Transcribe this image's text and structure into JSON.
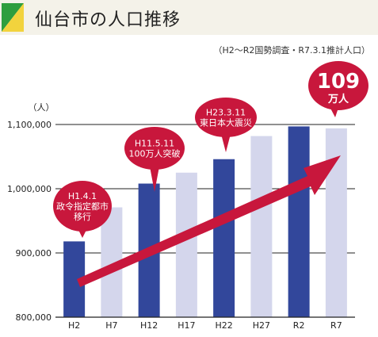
{
  "header": {
    "title": "仙台市の人口推移"
  },
  "subtitle": "（H2〜R2国勢調査・R7.3.1推計人口）",
  "colors": {
    "accent_green": "#2e9e3e",
    "accent_yellow": "#f2d33d",
    "bar_dark": "#32479b",
    "bar_light": "#d4d6ec",
    "callout": "#c8173c",
    "arrow": "#c8173c"
  },
  "chart_data": {
    "type": "bar",
    "ylabel": "（人）",
    "ylim": [
      800000,
      1100000
    ],
    "yticks": [
      800000,
      900000,
      1000000,
      1100000
    ],
    "ytick_labels": [
      "800,000",
      "900,000",
      "1,000,000",
      "1,100,000"
    ],
    "categories": [
      "H2",
      "H7",
      "H12",
      "H17",
      "H22",
      "H27",
      "R2",
      "R7"
    ],
    "values": [
      918000,
      971000,
      1008000,
      1025000,
      1046000,
      1082000,
      1097000,
      1094000
    ],
    "highlight": [
      true,
      false,
      true,
      false,
      true,
      false,
      true,
      false
    ],
    "annotations": [
      {
        "category": "H2",
        "lines": [
          "H1.4.1",
          "政令指定都市",
          "移行"
        ]
      },
      {
        "category": "H12",
        "lines": [
          "H11.5.11",
          "100万人突破"
        ]
      },
      {
        "category": "H22",
        "lines": [
          "H23.3.11",
          "東日本大震災"
        ]
      }
    ],
    "trend_badge": {
      "category": "R7",
      "lines": [
        "109",
        "万人"
      ]
    }
  }
}
